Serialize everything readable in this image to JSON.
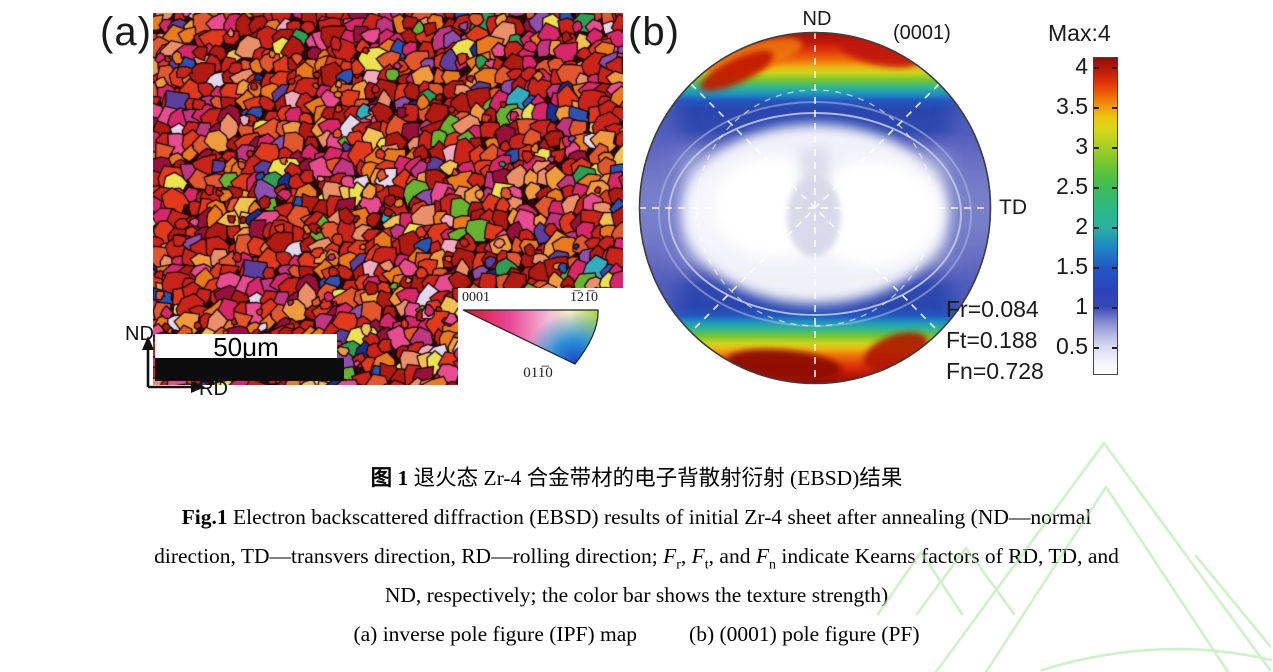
{
  "figure": {
    "panel_a": {
      "label": "(a)",
      "scale_bar_text": "50μm",
      "axis_vertical": "ND",
      "axis_horizontal": "RD",
      "ipf_key": {
        "top_left": "0001",
        "top_right": "1̅21̅0",
        "bottom": "011̅0"
      },
      "ipf_palette": [
        {
          "c": "#c9231a",
          "w": 20
        },
        {
          "c": "#b01a10",
          "w": 8
        },
        {
          "c": "#e0391c",
          "w": 10
        },
        {
          "c": "#e2572b",
          "w": 6
        },
        {
          "c": "#ea7a1c",
          "w": 9
        },
        {
          "c": "#f29b3c",
          "w": 4
        },
        {
          "c": "#d7276a",
          "w": 11
        },
        {
          "c": "#e84b90",
          "w": 5
        },
        {
          "c": "#c03682",
          "w": 4
        },
        {
          "c": "#8d4fae",
          "w": 2
        },
        {
          "c": "#5a3f9e",
          "w": 1
        },
        {
          "c": "#ea8f68",
          "w": 4
        },
        {
          "c": "#f2c152",
          "w": 2
        },
        {
          "c": "#ece24e",
          "w": 2
        },
        {
          "c": "#65b32e",
          "w": 2
        },
        {
          "c": "#2e9e52",
          "w": 1
        },
        {
          "c": "#30aec0",
          "w": 1
        },
        {
          "c": "#2b53b4",
          "w": 2
        },
        {
          "c": "#16328e",
          "w": 1
        },
        {
          "c": "#e3d7ee",
          "w": 1
        },
        {
          "c": "#f0a9bd",
          "w": 2
        },
        {
          "c": "#97103c",
          "w": 3
        }
      ]
    },
    "panel_b": {
      "label": "(b)",
      "top_axis": "ND",
      "plane": "(0001)",
      "right_axis": "TD",
      "kearns": [
        "Fr=0.084",
        "Ft=0.188",
        "Fn=0.728"
      ]
    },
    "colorbar": {
      "title": "Max:4",
      "ticks": [
        "4",
        "3.5",
        "3",
        "2.5",
        "2",
        "1.5",
        "1",
        "0.5"
      ],
      "gradient": [
        {
          "c": "#ffffff",
          "p": 0
        },
        {
          "c": "#f1f1fa",
          "p": 4
        },
        {
          "c": "#d8d9ef",
          "p": 8.8
        },
        {
          "c": "#aeb2e0",
          "p": 13
        },
        {
          "c": "#7d83cc",
          "p": 17
        },
        {
          "c": "#3546b6",
          "p": 21.4
        },
        {
          "c": "#2a44bb",
          "p": 27
        },
        {
          "c": "#2158c8",
          "p": 34
        },
        {
          "c": "#1f86c2",
          "p": 40
        },
        {
          "c": "#27b2a2",
          "p": 46.5
        },
        {
          "c": "#2fb97e",
          "p": 53
        },
        {
          "c": "#3cbc58",
          "p": 59
        },
        {
          "c": "#64c434",
          "p": 65
        },
        {
          "c": "#a6cf22",
          "p": 71.7
        },
        {
          "c": "#d2d818",
          "p": 77
        },
        {
          "c": "#ecc80f",
          "p": 81
        },
        {
          "c": "#f0a00a",
          "p": 84.3
        },
        {
          "c": "#ee6a06",
          "p": 88
        },
        {
          "c": "#e03509",
          "p": 92
        },
        {
          "c": "#c01a07",
          "p": 96
        },
        {
          "c": "#8f0d05",
          "p": 100
        }
      ]
    }
  },
  "caption": {
    "zh_bold": "图 1",
    "zh_text": " 退火态 Zr-4 合金带材的电子背散射衍射 (EBSD)结果",
    "en_bold": "Fig.1",
    "en_line1": " Electron backscattered diffraction (EBSD) results of initial Zr-4 sheet after annealing (ND—normal",
    "line3": {
      "p0": "direction, TD—transvers direction, RD—rolling direction; ",
      "f": "F",
      "s1": "r",
      "sep1": ", ",
      "s2": "t",
      "sep2": ", and ",
      "s3": "n",
      "p1": " indicate Kearns factors of RD, TD, and"
    },
    "en_line3": "ND, respectively; the color bar shows the texture strength)",
    "sub_a": "(a) inverse pole figure (IPF) map",
    "sub_b": "(b) (0001) pole figure (PF)"
  },
  "chart_data": {
    "type": "heatmap",
    "title": "(0001) pole figure (PF) of annealed Zr-4 sheet",
    "pole_figure": {
      "plane": "(0001)",
      "top_label": "ND",
      "right_label": "TD",
      "max_intensity": 4,
      "colorbar_ticks": [
        4,
        3.5,
        3,
        2.5,
        2,
        1.5,
        1,
        0.5
      ],
      "kearns_factors": {
        "Fr": 0.084,
        "Ft": 0.188,
        "Fn": 0.728
      },
      "description": "Basal pole intensity maxima (~4, dark red) at top and bottom rim near ND, bands grading red-yellow-green-blue toward a broad near-white minimum (<0.5) elongated along TD through the center; dashed radial grid every 45 degrees"
    },
    "companion_map": {
      "type": "EBSD IPF map",
      "scale_bar": "50 μm",
      "axes": [
        "ND",
        "RD"
      ],
      "ipf_key_poles": [
        "0001",
        "-12-10",
        "01-10"
      ]
    }
  }
}
